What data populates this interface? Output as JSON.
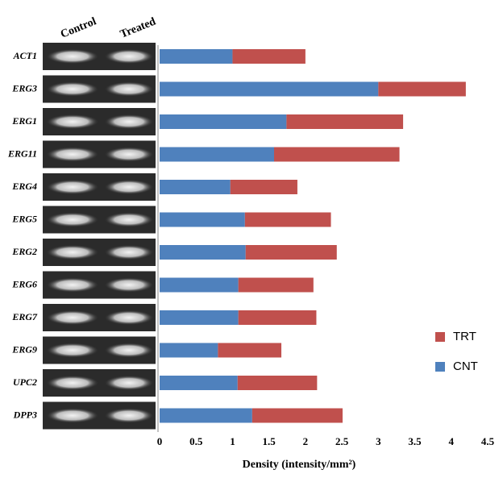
{
  "chart_data": {
    "type": "stacked_hbar",
    "lane_labels": [
      "Control",
      "Treated"
    ],
    "categories": [
      "ACT1",
      "ERG3",
      "ERG1",
      "ERG11",
      "ERG4",
      "ERG5",
      "ERG2",
      "ERG6",
      "ERG7",
      "ERG9",
      "UPC2",
      "DPP3"
    ],
    "series": [
      {
        "name": "CNT",
        "color": "#4f81bd",
        "values": [
          1.0,
          3.0,
          1.74,
          1.57,
          0.97,
          1.17,
          1.18,
          1.08,
          1.08,
          0.8,
          1.07,
          1.27
        ]
      },
      {
        "name": "TRT",
        "color": "#c0504d",
        "values": [
          1.0,
          1.2,
          1.6,
          1.72,
          0.92,
          1.18,
          1.25,
          1.03,
          1.07,
          0.87,
          1.09,
          1.24
        ]
      }
    ],
    "xlabel": "Density (intensity/mm²)",
    "xlim": [
      0,
      4.5
    ],
    "xticks": [
      0,
      0.5,
      1,
      1.5,
      2,
      2.5,
      3,
      3.5,
      4,
      4.5
    ],
    "legend": "right"
  }
}
